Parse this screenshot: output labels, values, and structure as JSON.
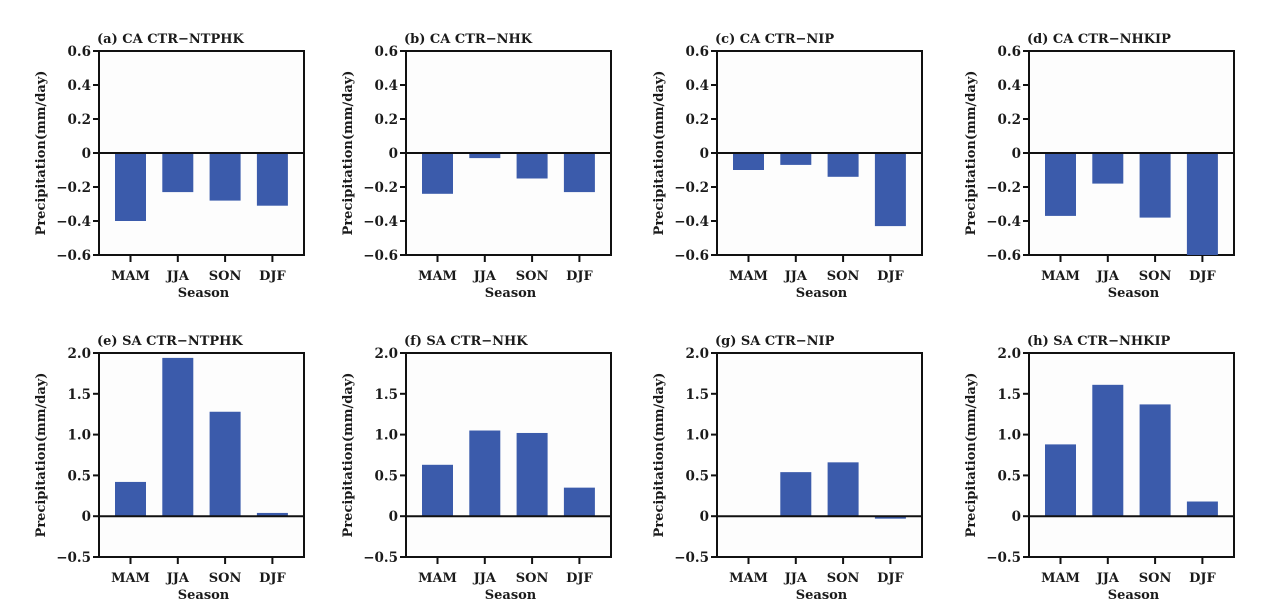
{
  "figure": {
    "bar_color": "#3b5bab",
    "axis_color": "#111111"
  },
  "chart_data": [
    {
      "id": "a",
      "type": "bar",
      "title": "(a) CA CTR−NTPHK",
      "xlabel": "Season",
      "ylabel": "Precipitation(mm/day)",
      "categories": [
        "MAM",
        "JJA",
        "SON",
        "DJF"
      ],
      "values": [
        -0.4,
        -0.23,
        -0.28,
        -0.31
      ],
      "ylim": [
        -0.6,
        0.6
      ],
      "yticks": [
        -0.6,
        -0.4,
        -0.2,
        0,
        0.2,
        0.4,
        0.6
      ],
      "ytick_labels": [
        "−0.6",
        "−0.4",
        "−0.2",
        "0",
        "0.2",
        "0.4",
        "0.6"
      ],
      "grid": false
    },
    {
      "id": "b",
      "type": "bar",
      "title": "(b) CA CTR−NHK",
      "xlabel": "Season",
      "ylabel": "Precipitation(mm/day)",
      "categories": [
        "MAM",
        "JJA",
        "SON",
        "DJF"
      ],
      "values": [
        -0.24,
        -0.03,
        -0.15,
        -0.23
      ],
      "ylim": [
        -0.6,
        0.6
      ],
      "yticks": [
        -0.6,
        -0.4,
        -0.2,
        0,
        0.2,
        0.4,
        0.6
      ],
      "ytick_labels": [
        "−0.6",
        "−0.4",
        "−0.2",
        "0",
        "0.2",
        "0.4",
        "0.6"
      ],
      "grid": false
    },
    {
      "id": "c",
      "type": "bar",
      "title": "(c) CA CTR−NIP",
      "xlabel": "Season",
      "ylabel": "Precipitation(mm/day)",
      "categories": [
        "MAM",
        "JJA",
        "SON",
        "DJF"
      ],
      "values": [
        -0.1,
        -0.07,
        -0.14,
        -0.43
      ],
      "ylim": [
        -0.6,
        0.6
      ],
      "yticks": [
        -0.6,
        -0.4,
        -0.2,
        0,
        0.2,
        0.4,
        0.6
      ],
      "ytick_labels": [
        "−0.6",
        "−0.4",
        "−0.2",
        "0",
        "0.2",
        "0.4",
        "0.6"
      ],
      "grid": false
    },
    {
      "id": "d",
      "type": "bar",
      "title": "(d) CA CTR−NHKIP",
      "xlabel": "Season",
      "ylabel": "Precipitation(mm/day)",
      "categories": [
        "MAM",
        "JJA",
        "SON",
        "DJF"
      ],
      "values": [
        -0.37,
        -0.18,
        -0.38,
        -0.6
      ],
      "ylim": [
        -0.6,
        0.6
      ],
      "yticks": [
        -0.6,
        -0.4,
        -0.2,
        0,
        0.2,
        0.4,
        0.6
      ],
      "ytick_labels": [
        "−0.6",
        "−0.4",
        "−0.2",
        "0",
        "0.2",
        "0.4",
        "0.6"
      ],
      "grid": false
    },
    {
      "id": "e",
      "type": "bar",
      "title": "(e) SA CTR−NTPHK",
      "xlabel": "Season",
      "ylabel": "Precipitation(mm/day)",
      "categories": [
        "MAM",
        "JJA",
        "SON",
        "DJF"
      ],
      "values": [
        0.42,
        1.94,
        1.28,
        0.04
      ],
      "ylim": [
        -0.5,
        2.0
      ],
      "yticks": [
        -0.5,
        0,
        0.5,
        1.0,
        1.5,
        2.0
      ],
      "ytick_labels": [
        "−0.5",
        "0",
        "0.5",
        "1.0",
        "1.5",
        "2.0"
      ],
      "grid": false
    },
    {
      "id": "f",
      "type": "bar",
      "title": "(f) SA CTR−NHK",
      "xlabel": "Season",
      "ylabel": "Precipitation(mm/day)",
      "categories": [
        "MAM",
        "JJA",
        "SON",
        "DJF"
      ],
      "values": [
        0.63,
        1.05,
        1.02,
        0.35
      ],
      "ylim": [
        -0.5,
        2.0
      ],
      "yticks": [
        -0.5,
        0,
        0.5,
        1.0,
        1.5,
        2.0
      ],
      "ytick_labels": [
        "−0.5",
        "0",
        "0.5",
        "1.0",
        "1.5",
        "2.0"
      ],
      "grid": false
    },
    {
      "id": "g",
      "type": "bar",
      "title": "(g) SA CTR−NIP",
      "xlabel": "Season",
      "ylabel": "Precipitation(mm/day)",
      "categories": [
        "MAM",
        "JJA",
        "SON",
        "DJF"
      ],
      "values": [
        0.0,
        0.54,
        0.66,
        -0.03
      ],
      "ylim": [
        -0.5,
        2.0
      ],
      "yticks": [
        -0.5,
        0,
        0.5,
        1.0,
        1.5,
        2.0
      ],
      "ytick_labels": [
        "−0.5",
        "0",
        "0.5",
        "1.0",
        "1.5",
        "2.0"
      ],
      "grid": false
    },
    {
      "id": "h",
      "type": "bar",
      "title": "(h) SA CTR−NHKIP",
      "xlabel": "Season",
      "ylabel": "Precipitation(mm/day)",
      "categories": [
        "MAM",
        "JJA",
        "SON",
        "DJF"
      ],
      "values": [
        0.88,
        1.61,
        1.37,
        0.18
      ],
      "ylim": [
        -0.5,
        2.0
      ],
      "yticks": [
        -0.5,
        0,
        0.5,
        1.0,
        1.5,
        2.0
      ],
      "ytick_labels": [
        "−0.5",
        "0",
        "0.5",
        "1.0",
        "1.5",
        "2.0"
      ],
      "grid": false
    }
  ]
}
